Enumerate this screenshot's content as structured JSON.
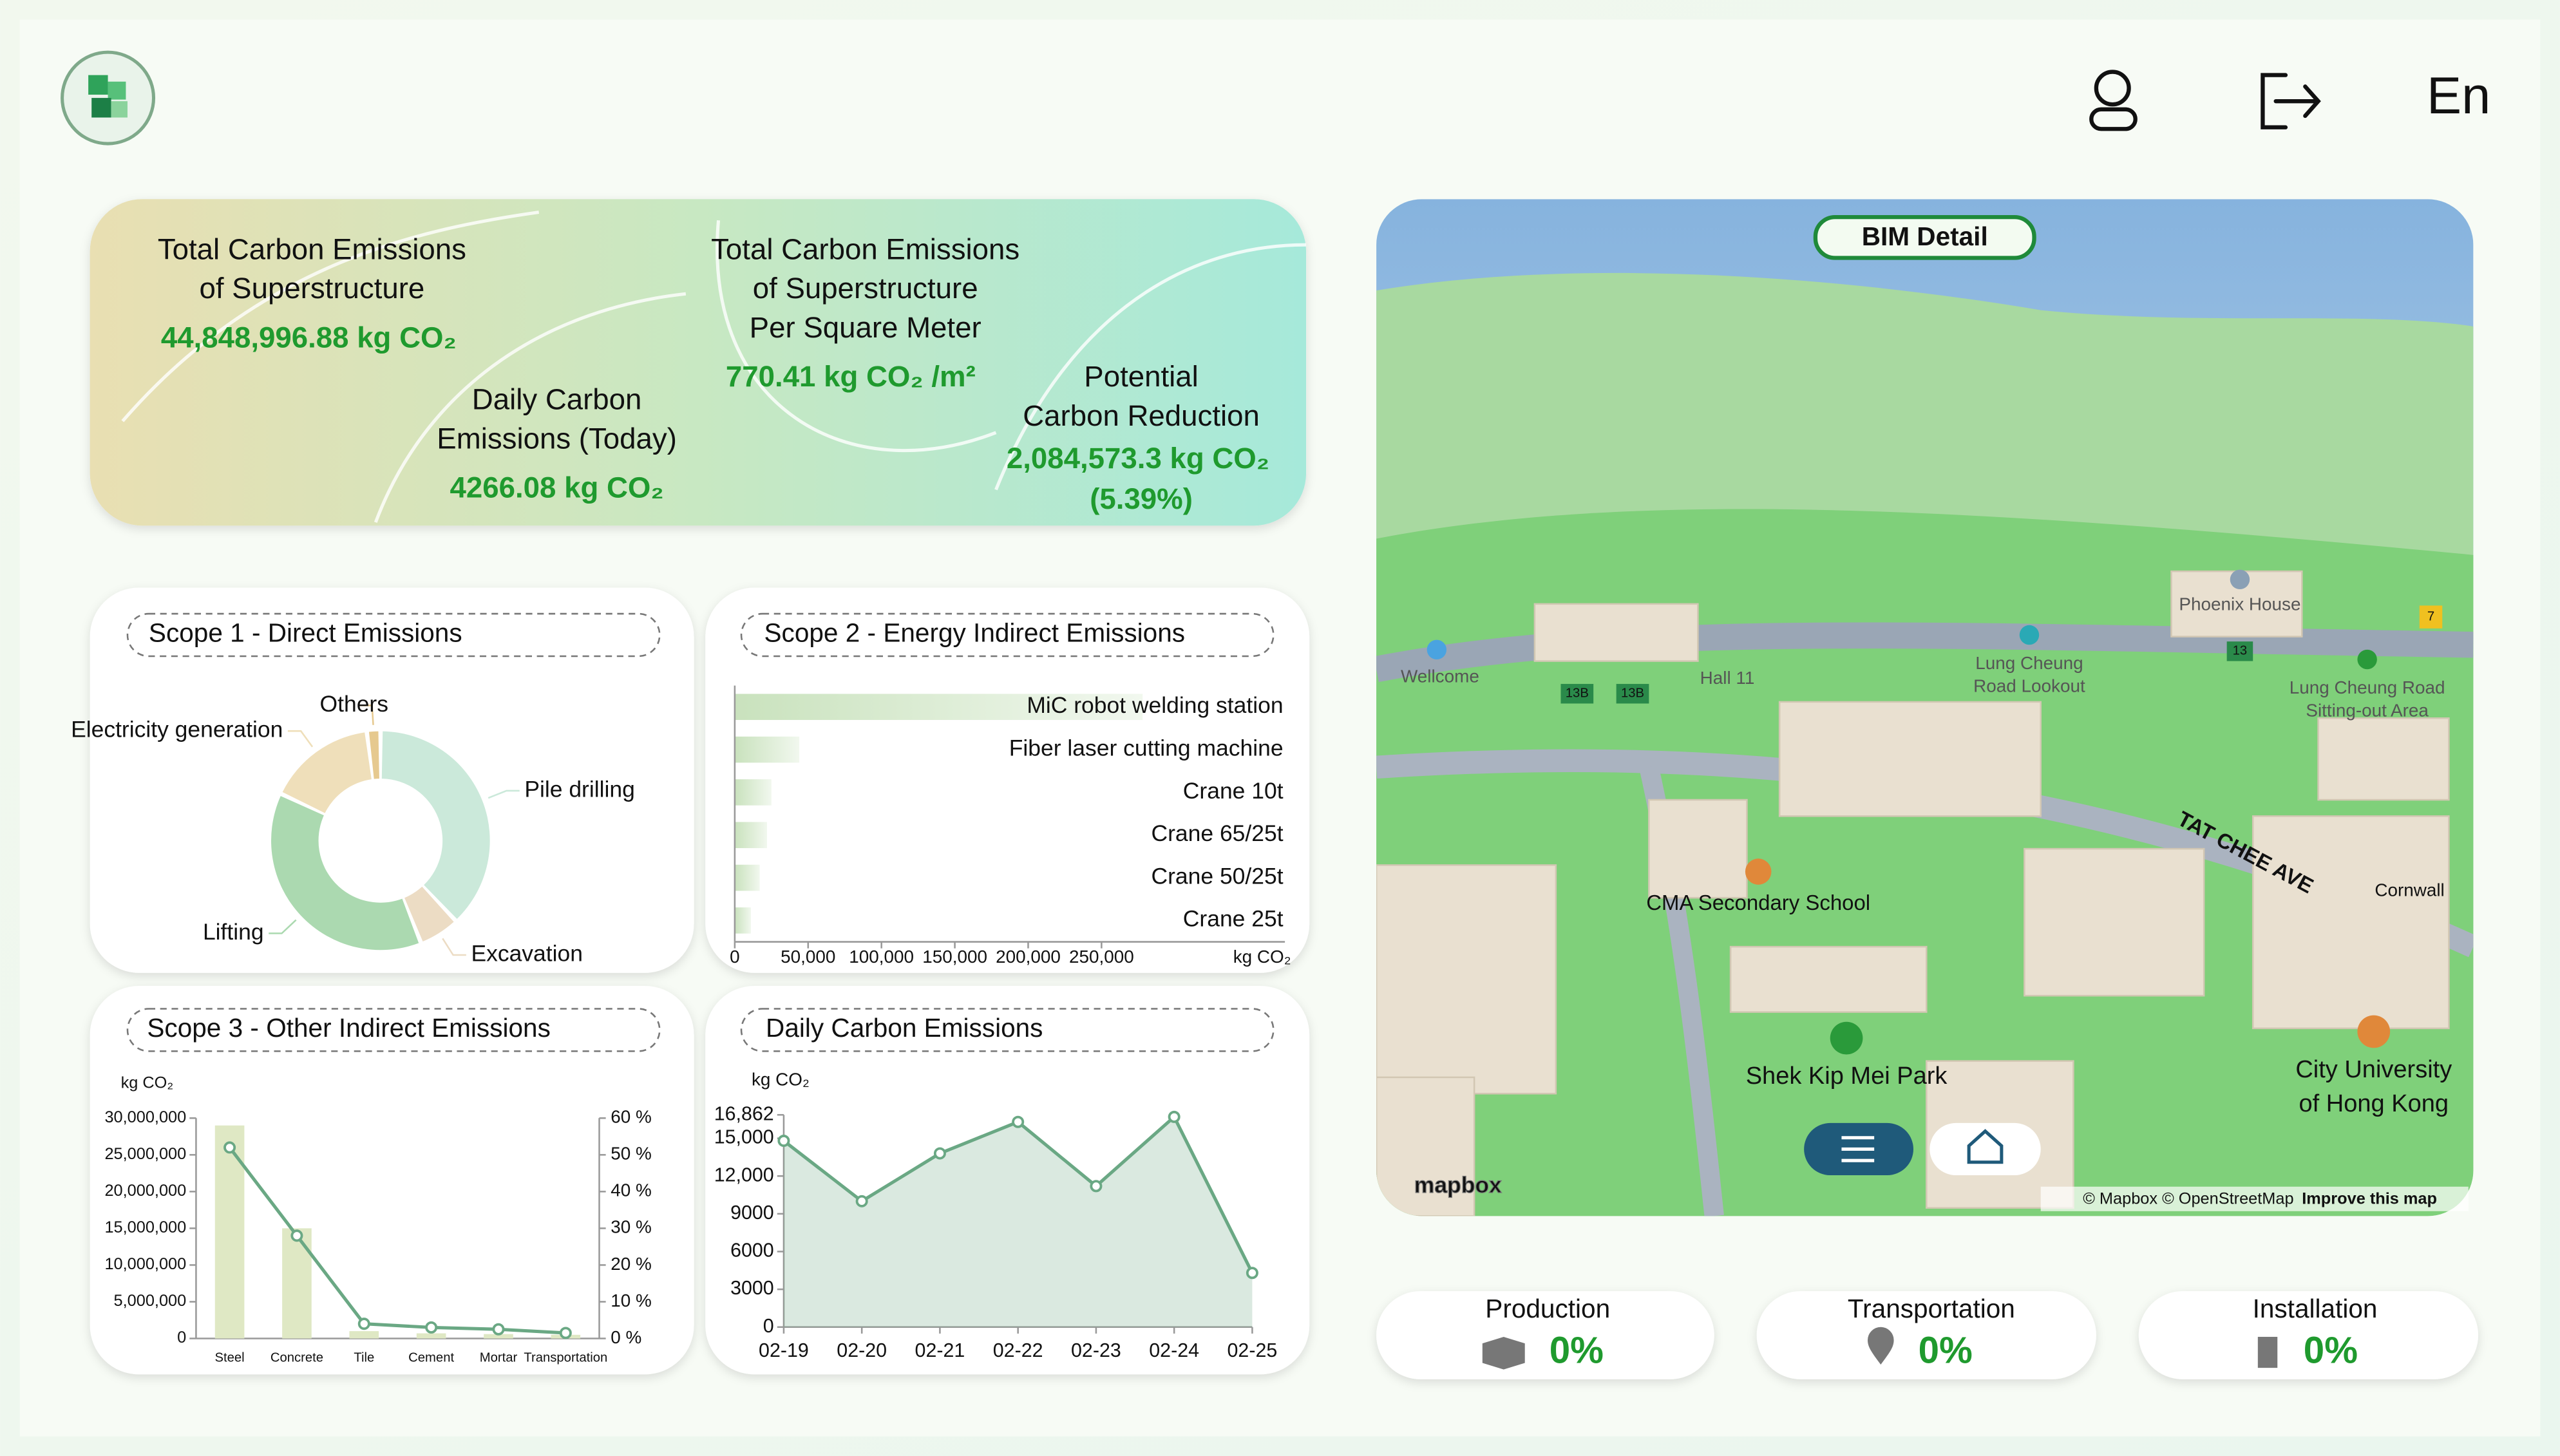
{
  "header": {
    "language": "En"
  },
  "kpis": [
    {
      "label": [
        "Total Carbon Emissions",
        "of Superstructure"
      ],
      "value": "44,848,996.88 kg CO₂"
    },
    {
      "label": [
        "Daily Carbon",
        "Emissions (Today)"
      ],
      "value": "4266.08 kg CO₂"
    },
    {
      "label": [
        "Total Carbon Emissions",
        "of Superstructure",
        "Per Square Meter"
      ],
      "value": "770.41 kg CO₂ /m²"
    },
    {
      "label": [
        "Potential",
        "Carbon Reduction"
      ],
      "value": "2,084,573.3 kg CO₂",
      "note": "(5.39%)"
    }
  ],
  "chart_data": [
    {
      "type": "pie",
      "title": "Scope 1 - Direct Emissions",
      "categories": [
        "Pile drilling",
        "Excavation",
        "Lifting",
        "Electricity generation",
        "Others"
      ],
      "values": [
        38,
        6,
        38,
        16,
        2
      ],
      "colors": [
        "#cbe9da",
        "#ecdcc4",
        "#abd9b0",
        "#efdfba",
        "#e6c98f"
      ]
    },
    {
      "type": "bar",
      "orientation": "horizontal",
      "title": "Scope 2 - Energy Indirect Emissions",
      "categories": [
        "MiC robot welding station",
        "Fiber laser cutting machine",
        "Crane 10t",
        "Crane 65/25t",
        "Crane 50/25t",
        "Crane 25t"
      ],
      "values": [
        278000,
        44000,
        25000,
        22000,
        17000,
        11000
      ],
      "color": "#c9e2bd",
      "xlim": [
        0,
        375000
      ],
      "xticks": [
        0,
        {
          "value": 50000,
          "label": "50,000"
        },
        {
          "value": 100000,
          "label": "100,000"
        },
        {
          "value": 150000,
          "label": "150,000"
        },
        {
          "value": 200000,
          "label": "200,000"
        },
        {
          "value": 250000,
          "label": "250,000"
        }
      ],
      "xlabel": "kg CO₂"
    },
    {
      "type": "combo",
      "title": "Scope 3 - Other Indirect Emissions",
      "categories": [
        "Steel",
        "Concrete",
        "Tile",
        "Cement",
        "Mortar",
        "Transportation"
      ],
      "series": [
        {
          "type": "bar",
          "color": "#dfe8c4",
          "values": [
            29000000,
            15000000,
            1000000,
            700000,
            600000,
            500000
          ]
        },
        {
          "type": "line",
          "axis": "y2",
          "color": "#6aa884",
          "values": [
            52,
            28,
            4,
            3,
            2.5,
            1.5
          ]
        }
      ],
      "ylim": [
        0,
        30000000
      ],
      "yticks": [
        0,
        {
          "value": 5000000,
          "label": "5,000,000"
        },
        {
          "value": 10000000,
          "label": "10,000,000"
        },
        {
          "value": 15000000,
          "label": "15,000,000"
        },
        {
          "value": 20000000,
          "label": "20,000,000"
        },
        {
          "value": 25000000,
          "label": "25,000,000"
        },
        {
          "value": 30000000,
          "label": "30,000,000"
        }
      ],
      "y2lim": [
        0,
        60
      ],
      "y2ticks": [
        {
          "value": 0,
          "label": "0 %"
        },
        {
          "value": 10,
          "label": "10 %"
        },
        {
          "value": 20,
          "label": "20 %"
        },
        {
          "value": 30,
          "label": "30 %"
        },
        {
          "value": 40,
          "label": "40 %"
        },
        {
          "value": 50,
          "label": "50 %"
        },
        {
          "value": 60,
          "label": "60 %"
        }
      ],
      "ylabel": "kg CO₂"
    },
    {
      "type": "area",
      "title": "Daily Carbon Emissions",
      "categories": [
        "02-19",
        "02-20",
        "02-21",
        "02-22",
        "02-23",
        "02-24",
        "02-25"
      ],
      "values": [
        14800,
        10000,
        13800,
        16300,
        11200,
        16700,
        4300
      ],
      "color": "#6aa884",
      "ylim": [
        0,
        16862
      ],
      "yticks": [
        0,
        3000,
        6000,
        9000,
        {
          "value": 12000,
          "label": "12,000"
        },
        {
          "value": 15000,
          "label": "15,000"
        },
        {
          "value": 16862,
          "label": "16,862"
        }
      ],
      "ylabel": "kg CO₂"
    }
  ],
  "map": {
    "button": "BIM Detail",
    "labels": [
      "Wellcome",
      "Hall 11",
      "Lung Cheung",
      "Road Lookout",
      "Phoenix House",
      "Lung Cheung Road",
      "Sitting-out Area",
      "TAT CHEE AVE",
      "CMA Secondary School",
      "Shek Kip Mei Park",
      "City University",
      "of Hong Kong",
      "Cornwall"
    ],
    "shields": [
      "13B",
      "13B",
      "13",
      "7"
    ],
    "logo": "mapbox",
    "attribution": "© Mapbox © OpenStreetMap",
    "improve": "Improve this map"
  },
  "status": [
    {
      "label": "Production",
      "value": "0%"
    },
    {
      "label": "Transportation",
      "value": "0%"
    },
    {
      "label": "Installation",
      "value": "0%"
    }
  ]
}
